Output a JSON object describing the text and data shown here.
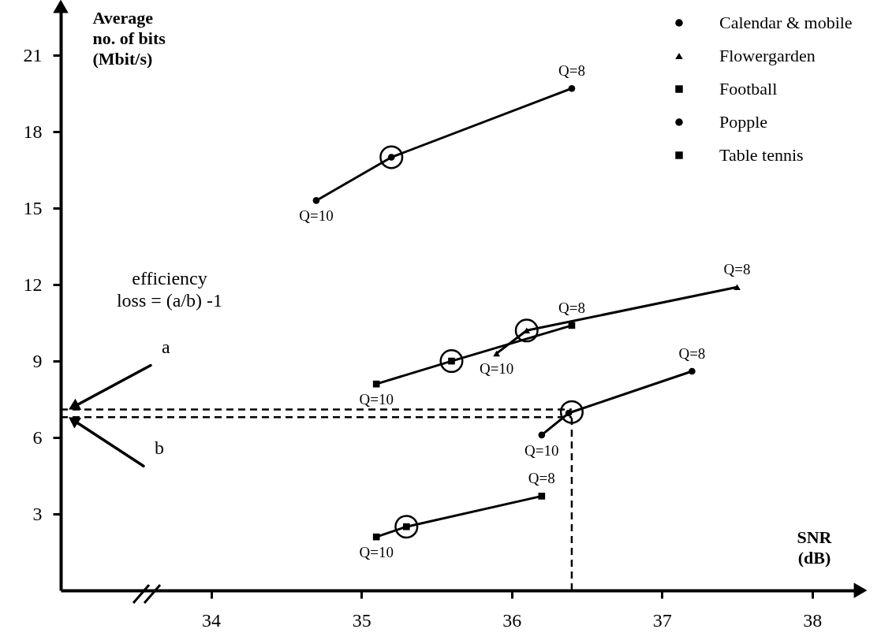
{
  "chart_data": {
    "type": "line",
    "xlabel": "SNR (dB)",
    "ylabel": "Average no. of bits (Mbit/s)",
    "xlim": [
      33,
      38.3
    ],
    "ylim": [
      0,
      22.8
    ],
    "xticks": [
      34,
      35,
      36,
      37,
      38
    ],
    "yticks": [
      3,
      6,
      9,
      12,
      15,
      18,
      21
    ],
    "legend": "top right",
    "series": [
      {
        "name": "Calendar & mobile",
        "color": "#000000",
        "marker": "circle",
        "x": [
          34.7,
          35.2,
          36.4
        ],
        "values": [
          15.3,
          17.0,
          19.7
        ]
      },
      {
        "name": "Flowergarden",
        "color": "#000000",
        "marker": "triangle",
        "x": [
          35.9,
          36.1,
          37.5
        ],
        "values": [
          9.3,
          10.2,
          11.9
        ]
      },
      {
        "name": "Football",
        "color": "#000000",
        "marker": "square",
        "x": [
          35.1,
          35.6,
          36.4
        ],
        "values": [
          8.1,
          9.0,
          10.4
        ]
      },
      {
        "name": "Popple",
        "color": "#000000",
        "marker": "circle",
        "x": [
          36.2,
          36.38,
          37.2
        ],
        "values": [
          6.1,
          6.96,
          8.6
        ]
      },
      {
        "name": "Table tennis",
        "color": "#000000",
        "marker": "square",
        "x": [
          35.1,
          35.3,
          36.2
        ],
        "values": [
          2.1,
          2.5,
          3.7
        ]
      },
      {
        "type": "bubble",
        "color": "#000000",
        "marker": "circle",
        "x": [
          35.2,
          36.1,
          35.6,
          36.4,
          35.3
        ],
        "values": [
          17.0,
          10.2,
          9.0,
          7.0,
          2.5
        ],
        "sizes": [
          1,
          1,
          1,
          1,
          1
        ]
      }
    ],
    "ref_lines": [
      {
        "axis": "y",
        "value": 7.1,
        "label": "a",
        "line_style": "dashed"
      },
      {
        "axis": "y",
        "value": 6.8,
        "label": "b",
        "line_style": "dashed"
      },
      {
        "axis": "x",
        "value": 36.4,
        "line_style": "dashed"
      }
    ],
    "annotations": [
      "efficiency loss = (a/b) -1",
      {
        "text": "Q=10",
        "x": 34.7,
        "y": 15.3
      },
      {
        "text": "Q=8",
        "x": 36.4,
        "y": 19.7
      },
      {
        "text": "Q=10",
        "x": 35.9,
        "y": 9.3
      },
      {
        "text": "Q=8",
        "x": 37.5,
        "y": 11.9
      },
      {
        "text": "Q=10",
        "x": 35.1,
        "y": 8.1
      },
      {
        "text": "Q=8",
        "x": 36.4,
        "y": 10.4
      },
      {
        "text": "Q=10",
        "x": 36.2,
        "y": 6.1
      },
      {
        "text": "Q=8",
        "x": 37.2,
        "y": 8.6
      },
      {
        "text": "Q=10",
        "x": 35.1,
        "y": 2.1
      },
      {
        "text": "Q=8",
        "x": 36.2,
        "y": 3.7
      }
    ]
  }
}
